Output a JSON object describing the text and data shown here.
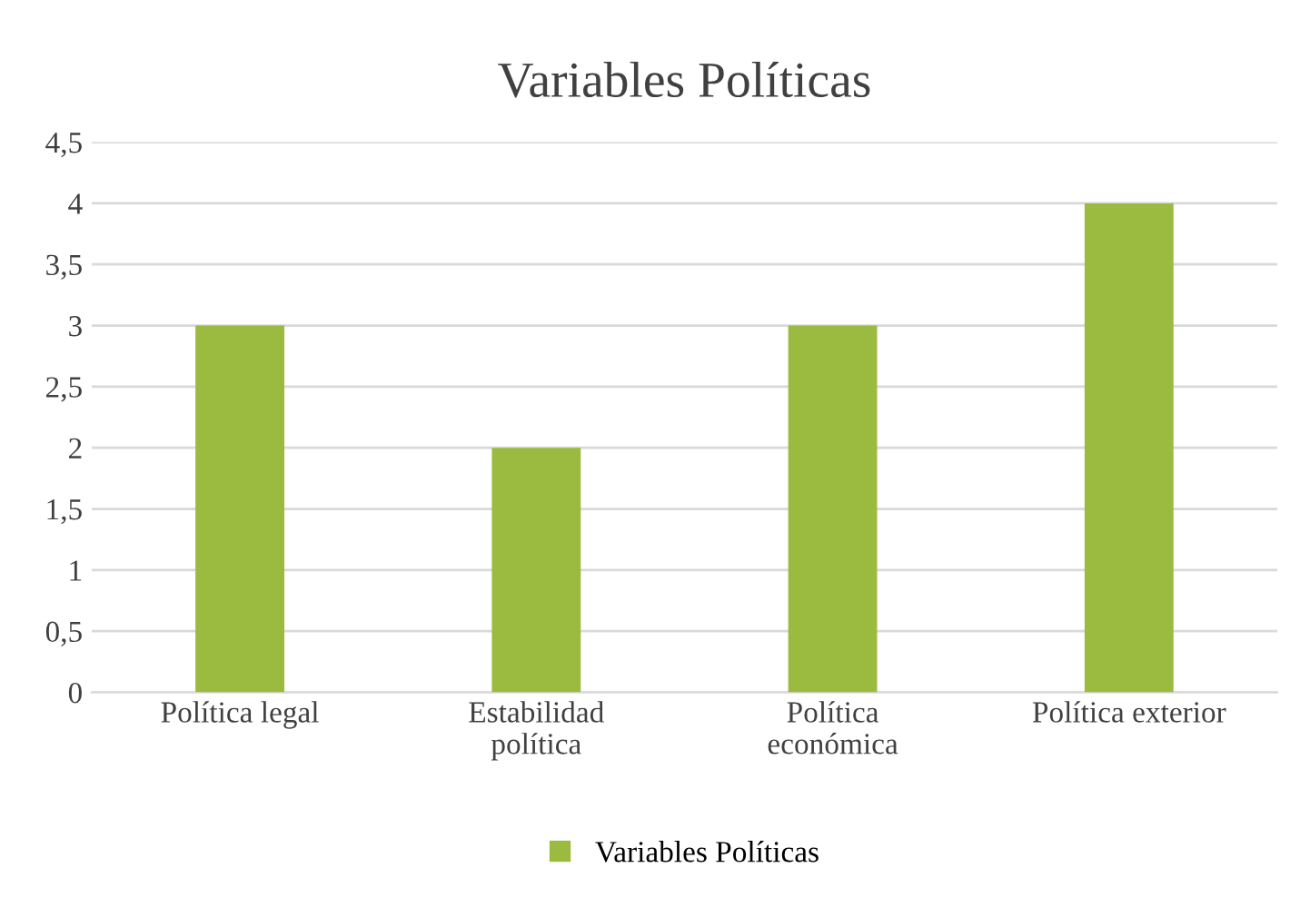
{
  "chart_data": {
    "type": "bar",
    "title": "Variables Políticas",
    "categories": [
      "Política legal",
      "Estabilidad\npolítica",
      "Política\neconómica",
      "Política exterior"
    ],
    "series": [
      {
        "name": "Variables Políticas",
        "color": "#9bbb40",
        "values": [
          3,
          2,
          3,
          4
        ]
      }
    ],
    "ylim": [
      0,
      4.5
    ],
    "yticks": [
      0,
      {
        "value": 0.5,
        "label": "0,5"
      },
      1,
      {
        "value": 1.5,
        "label": "1,5"
      },
      2,
      {
        "value": 2.5,
        "label": "2,5"
      },
      3,
      {
        "value": 3.5,
        "label": "3,5"
      },
      4,
      {
        "value": 4.5,
        "label": "4,5"
      }
    ],
    "grid": "y",
    "legend": "bottom"
  }
}
